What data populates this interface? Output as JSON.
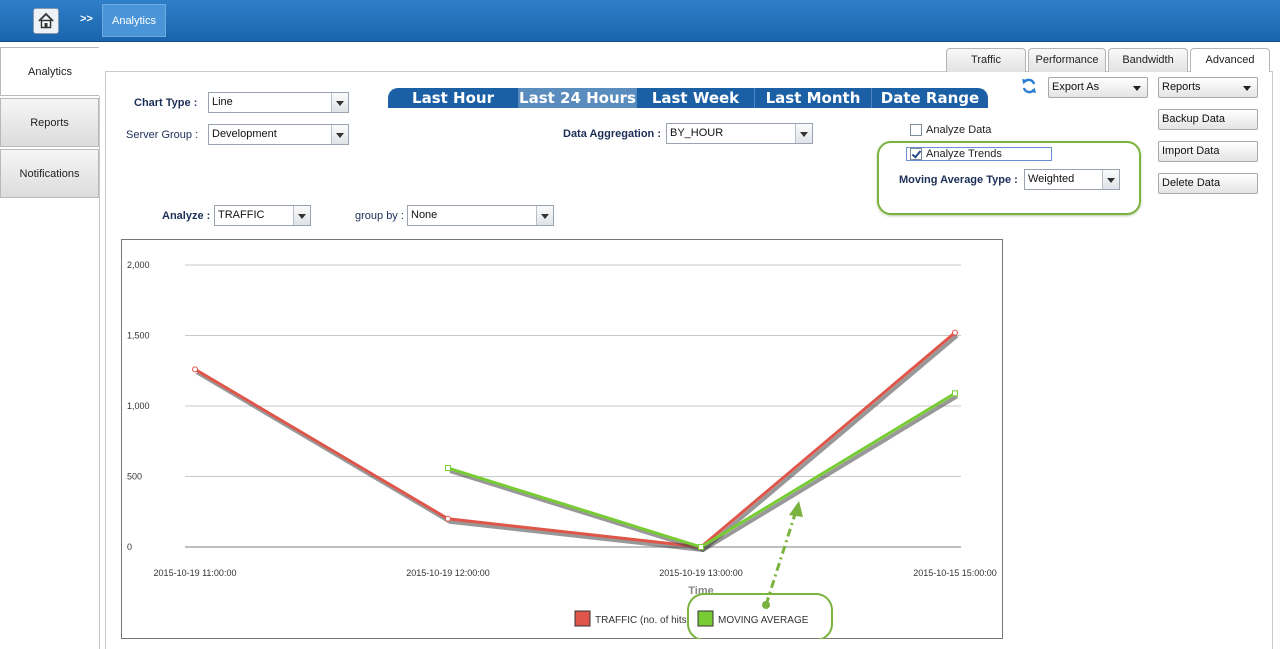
{
  "header": {
    "breadcrumb_sep": ">>",
    "breadcrumb_current": "Analytics"
  },
  "sidebar": {
    "items": [
      {
        "label": "Analytics",
        "active": true
      },
      {
        "label": "Reports",
        "active": false
      },
      {
        "label": "Notifications",
        "active": false
      }
    ]
  },
  "tabs": [
    {
      "label": "Traffic"
    },
    {
      "label": "Performance"
    },
    {
      "label": "Bandwidth"
    },
    {
      "label": "Advanced",
      "active": true
    }
  ],
  "controls": {
    "chart_type_label": "Chart Type :",
    "chart_type_value": "Line",
    "server_group_label": "Server Group :",
    "server_group_value": "Development",
    "data_aggregation_label": "Data Aggregation :",
    "data_aggregation_value": "BY_HOUR",
    "analyze_label": "Analyze :",
    "analyze_value": "TRAFFIC",
    "group_by_label": "group by :",
    "group_by_value": "None"
  },
  "time_ranges": [
    {
      "label": "Last Hour"
    },
    {
      "label": "Last 24 Hours",
      "active": true
    },
    {
      "label": "Last Week"
    },
    {
      "label": "Last Month"
    },
    {
      "label": "Date Range"
    }
  ],
  "options": {
    "analyze_data_label": "Analyze Data",
    "analyze_data_checked": false,
    "analyze_trends_label": "Analyze Trends",
    "analyze_trends_checked": true,
    "moving_avg_label": "Moving Average Type :",
    "moving_avg_value": "Weighted"
  },
  "actions": {
    "export_as": "Export As",
    "reports": "Reports",
    "backup": "Backup Data",
    "import": "Import Data",
    "delete": "Delete Data"
  },
  "icons": {
    "home": "home-icon",
    "refresh": "refresh-icon"
  },
  "colors": {
    "accent": "#1a64ad",
    "highlight": "#7ab33e",
    "traffic": "#e0554a",
    "moving_average": "#77cc33"
  },
  "chart_data": {
    "type": "line",
    "x": [
      "2015-10-19 11:00:00",
      "2015-10-19 12:00:00",
      "2015-10-19 13:00:00",
      "2015-10-15 15:00:00"
    ],
    "xlabel": "Time",
    "ylim": [
      0,
      2000
    ],
    "yticks": [
      "2,000",
      "1,500",
      "1,000",
      "500",
      "0"
    ],
    "series": [
      {
        "name": "TRAFFIC (no. of hits",
        "values": [
          1260,
          200,
          0,
          1520
        ]
      },
      {
        "name": "MOVING AVERAGE",
        "values": [
          null,
          560,
          0,
          1090
        ]
      }
    ]
  }
}
